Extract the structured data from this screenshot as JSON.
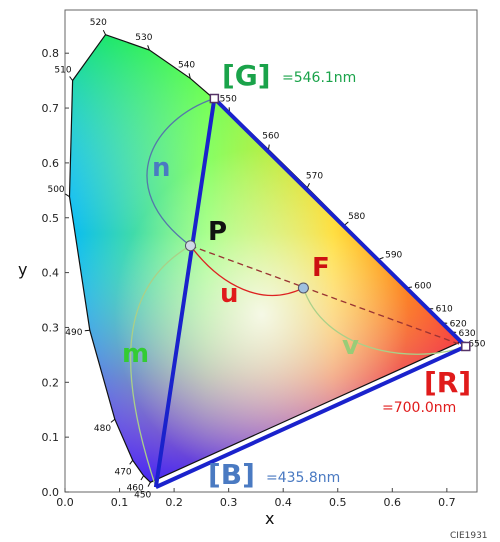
{
  "chart_data": {
    "type": "scatter",
    "xlabel": "x",
    "ylabel": "y",
    "xlim": [
      0.0,
      0.75
    ],
    "ylim": [
      0.0,
      0.85
    ],
    "x_ticks": [
      "0.0",
      "0.1",
      "0.2",
      "0.3",
      "0.4",
      "0.5",
      "0.6",
      "0.7"
    ],
    "y_ticks": [
      "0.0",
      "0.1",
      "0.2",
      "0.3",
      "0.4",
      "0.5",
      "0.6",
      "0.7",
      "0.8"
    ],
    "spectral_locus": [
      {
        "nm": "450",
        "x": 0.1566,
        "y": 0.0177
      },
      {
        "nm": "460",
        "x": 0.144,
        "y": 0.0297
      },
      {
        "nm": "470",
        "x": 0.1241,
        "y": 0.0578
      },
      {
        "nm": "480",
        "x": 0.0913,
        "y": 0.1327
      },
      {
        "nm": "490",
        "x": 0.0454,
        "y": 0.295
      },
      {
        "nm": "500",
        "x": 0.0082,
        "y": 0.5384
      },
      {
        "nm": "510",
        "x": 0.0139,
        "y": 0.7502
      },
      {
        "nm": "520",
        "x": 0.0743,
        "y": 0.8338
      },
      {
        "nm": "530",
        "x": 0.1547,
        "y": 0.8059
      },
      {
        "nm": "540",
        "x": 0.2296,
        "y": 0.7543
      },
      {
        "nm": "550",
        "x": 0.3016,
        "y": 0.6923
      },
      {
        "nm": "560",
        "x": 0.3731,
        "y": 0.6245
      },
      {
        "nm": "570",
        "x": 0.4441,
        "y": 0.5547
      },
      {
        "nm": "580",
        "x": 0.5125,
        "y": 0.4866
      },
      {
        "nm": "590",
        "x": 0.5752,
        "y": 0.4242
      },
      {
        "nm": "600",
        "x": 0.627,
        "y": 0.3725
      },
      {
        "nm": "610",
        "x": 0.6658,
        "y": 0.334
      },
      {
        "nm": "620",
        "x": 0.6915,
        "y": 0.3083
      },
      {
        "nm": "630",
        "x": 0.7079,
        "y": 0.292
      },
      {
        "nm": "650",
        "x": 0.726,
        "y": 0.274
      }
    ],
    "primaries": [
      {
        "label": "[G]",
        "note": "=546.1nm",
        "x": 0.2738,
        "y": 0.7174,
        "color": "#1aa34a"
      },
      {
        "label": "[R]",
        "note": "=700.0nm",
        "x": 0.7347,
        "y": 0.2653,
        "color": "#e01b1b"
      },
      {
        "label": "[B]",
        "note": "=435.8nm",
        "x": 0.1666,
        "y": 0.0089,
        "color": "#4a7ac2"
      }
    ],
    "points": [
      {
        "label": "P",
        "x": 0.23,
        "y": 0.449,
        "color": "#111111"
      },
      {
        "label": "F",
        "x": 0.437,
        "y": 0.372,
        "color": "#cc1111"
      }
    ],
    "curve_labels": [
      {
        "label": "n",
        "color": "#4a7ac2"
      },
      {
        "label": "m",
        "color": "#33cc33"
      },
      {
        "label": "u",
        "color": "#e01b1b"
      },
      {
        "label": "v",
        "color": "#99cc77"
      }
    ],
    "colors": {
      "triangle": "#1a22cc",
      "curve_n": "#5577aa",
      "curve_m": "#aad088",
      "curve_u": "#dd2222",
      "curve_v": "#aad088",
      "dashed": "#993333"
    },
    "grid": false
  },
  "credit": "CIE1931"
}
